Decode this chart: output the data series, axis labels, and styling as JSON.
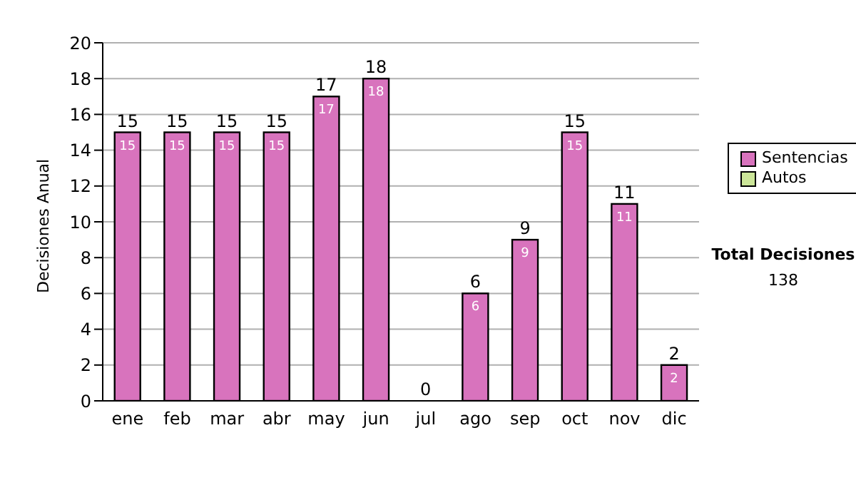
{
  "chart_data": {
    "type": "bar",
    "ylabel": "Decisiones Anual",
    "categories": [
      "ene",
      "feb",
      "mar",
      "abr",
      "may",
      "jun",
      "jul",
      "ago",
      "sep",
      "oct",
      "nov",
      "dic"
    ],
    "series": [
      {
        "name": "Sentencias",
        "color": "#d873bd",
        "values": [
          15,
          15,
          15,
          15,
          17,
          18,
          0,
          6,
          9,
          15,
          11,
          2
        ],
        "value_labels": [
          "15",
          "15",
          "15",
          "15",
          "17",
          "18",
          null,
          "6",
          "9",
          "15",
          "11",
          "2"
        ]
      },
      {
        "name": "Autos",
        "color": "#cce699",
        "values": [
          0,
          0,
          0,
          0,
          0,
          0,
          0,
          0,
          0,
          0,
          0,
          0
        ]
      }
    ],
    "stacked": true,
    "totals": [
      "15",
      "15",
      "15",
      "15",
      "17",
      "18",
      "0",
      "6",
      "9",
      "15",
      "11",
      "2"
    ],
    "ylim": [
      0,
      20
    ],
    "yticks": [
      0,
      2,
      4,
      6,
      8,
      10,
      12,
      14,
      16,
      18,
      20
    ],
    "grid": "y",
    "legend": "right",
    "annotations": [
      "Total Decisiones",
      "138"
    ]
  }
}
